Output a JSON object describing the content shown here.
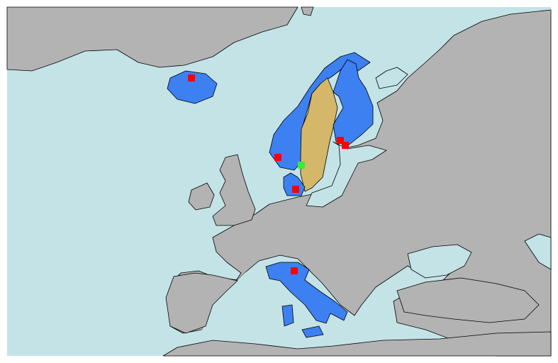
{
  "map": {
    "colors": {
      "sea": "#c3e3e7",
      "land": "#b3b3b3",
      "highlight_blue": "#3d80f2",
      "highlight_tan": "#d4b768",
      "marker_red": "#ff0000",
      "marker_green": "#33ee33",
      "frame": "#ffffff"
    },
    "marker_counts": {
      "red": 6,
      "green": 1
    }
  }
}
